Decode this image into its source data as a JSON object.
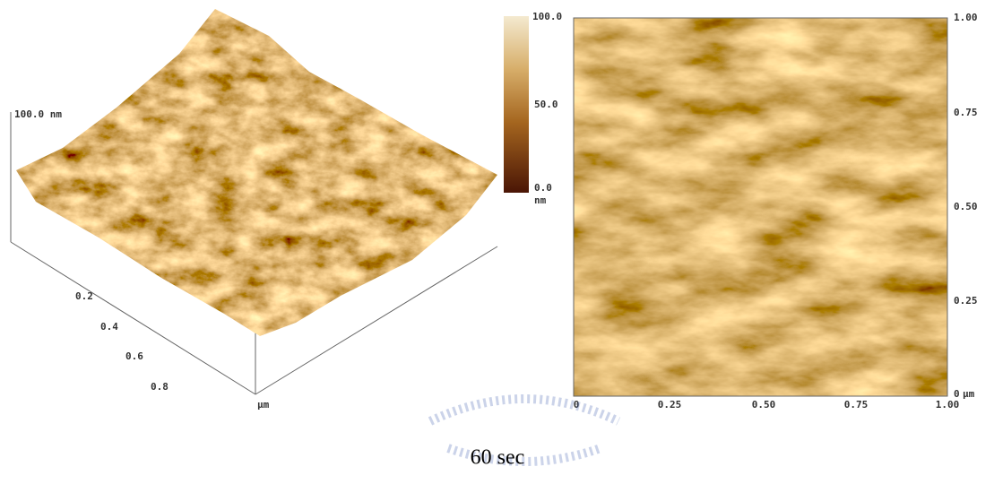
{
  "surface_3d": {
    "z_label": "100.0 nm",
    "x_ticks": [
      "0.2",
      "0.4",
      "0.6",
      "0.8"
    ],
    "x_unit": "µm"
  },
  "colorbar": {
    "labels": [
      "100.0",
      "50.0",
      "0.0"
    ],
    "unit": "nm"
  },
  "height_map": {
    "y_ticks": [
      "1.00",
      "0.75",
      "0.50",
      "0.25",
      "0"
    ],
    "y_unit": "µm",
    "x_ticks": [
      "0",
      "0.25",
      "0.50",
      "0.75",
      "1.00"
    ]
  },
  "caption": "60 sec"
}
